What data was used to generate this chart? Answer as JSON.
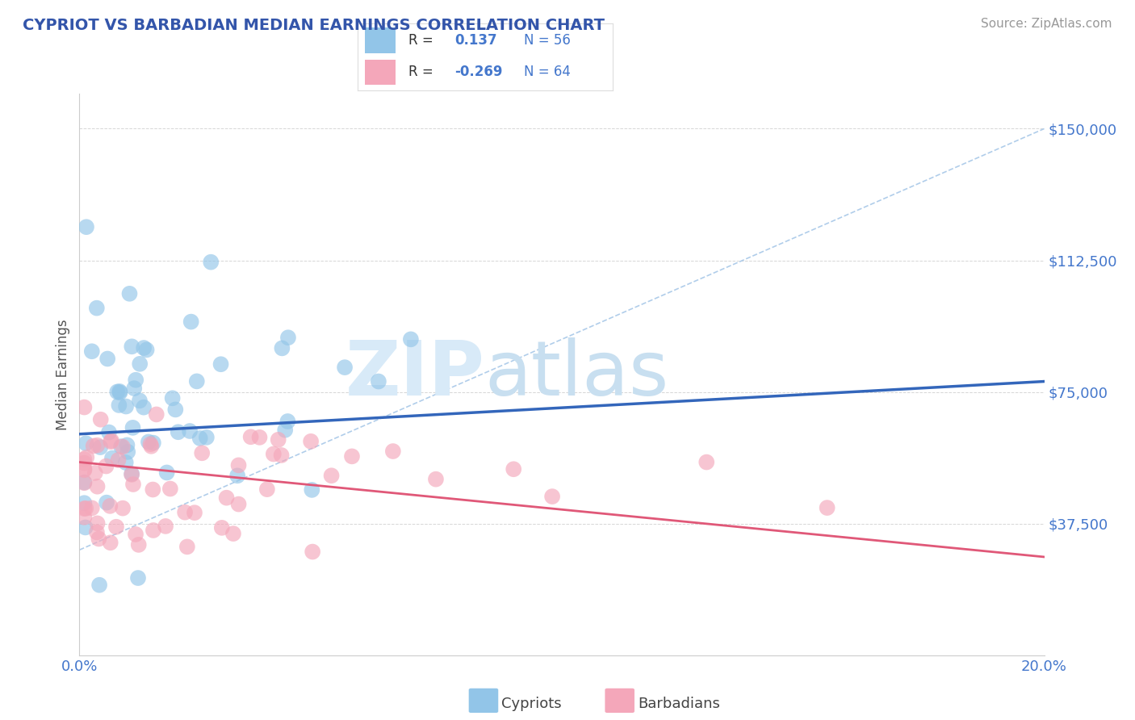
{
  "title": "CYPRIOT VS BARBADIAN MEDIAN EARNINGS CORRELATION CHART",
  "source": "Source: ZipAtlas.com",
  "ylabel": "Median Earnings",
  "xlim": [
    0.0,
    0.2
  ],
  "ylim": [
    0,
    160000
  ],
  "cypriot_R": "0.137",
  "cypriot_N": "56",
  "barbadian_R": "-0.269",
  "barbadian_N": "64",
  "cypriot_color": "#92C5E8",
  "barbadian_color": "#F4A7BA",
  "cypriot_line_color": "#3366BB",
  "barbadian_line_color": "#E05878",
  "dashed_line_color": "#A8C8E8",
  "background_color": "#FFFFFF",
  "title_color": "#3355AA",
  "axis_label_color": "#4477CC",
  "ytick_color": "#4477CC",
  "legend_R_color": "#4477CC",
  "source_color": "#999999",
  "watermark_zip_color": "#DDEEFF",
  "watermark_atlas_color": "#CCDDEE"
}
